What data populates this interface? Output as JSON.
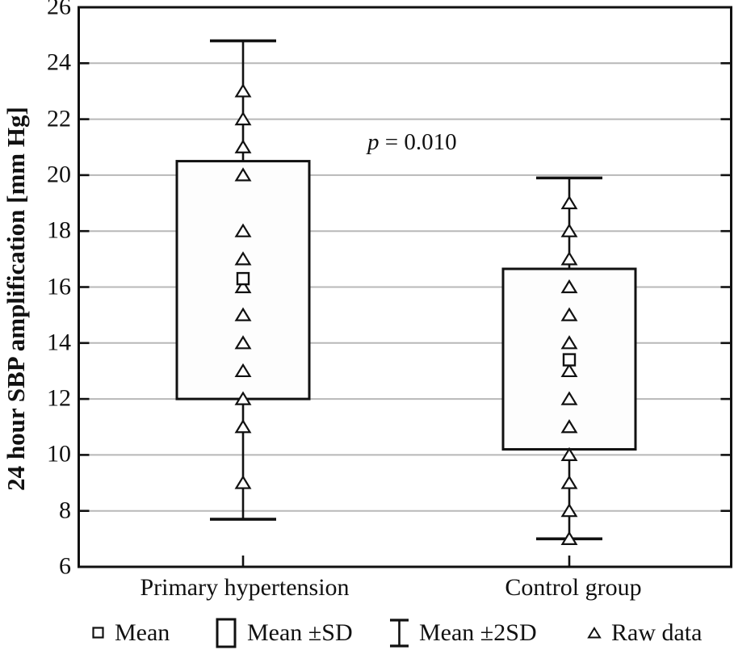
{
  "chart_data": {
    "type": "box",
    "subtype": "mean-sd-plot",
    "title": "",
    "xlabel": "",
    "ylabel": "24 hour SBP amplification [mm Hg]",
    "ylim": [
      6,
      26
    ],
    "yticks": [
      6,
      8,
      10,
      12,
      14,
      16,
      18,
      20,
      22,
      24,
      26
    ],
    "grid": true,
    "annotation": {
      "variable": "p",
      "rest": " = 0.010",
      "full": "p = 0.010"
    },
    "categories": [
      "Primary hypertension",
      "Control group"
    ],
    "groups": [
      {
        "label": "Primary hypertension",
        "mean": 16.3,
        "mean_minus_sd": 12.0,
        "mean_plus_sd": 20.5,
        "mean_minus_2sd": 7.7,
        "mean_plus_2sd": 24.8,
        "raw_data": [
          9,
          11,
          12,
          13,
          14,
          15,
          16,
          17,
          18,
          20,
          21,
          22,
          23
        ]
      },
      {
        "label": "Control group",
        "mean": 13.4,
        "mean_minus_sd": 10.2,
        "mean_plus_sd": 16.65,
        "mean_minus_2sd": 7.0,
        "mean_plus_2sd": 19.9,
        "raw_data": [
          7,
          8,
          9,
          10,
          11,
          12,
          13,
          14,
          15,
          16,
          17,
          18,
          19
        ]
      }
    ],
    "legend": {
      "position": "bottom",
      "items": [
        {
          "icon": "mean-square-icon",
          "label": "Mean"
        },
        {
          "icon": "sd-box-icon",
          "label": "Mean ±SD"
        },
        {
          "icon": "error-bar-icon",
          "label": "Mean ±2SD"
        },
        {
          "icon": "raw-data-triangle-icon",
          "label": "Raw data"
        }
      ]
    },
    "colors": {
      "axis": "#111111",
      "grid": "#b8b8b8",
      "box_fill": "#fdfdfd",
      "marker_fill": "#ffffff",
      "background": "#ffffff"
    }
  }
}
